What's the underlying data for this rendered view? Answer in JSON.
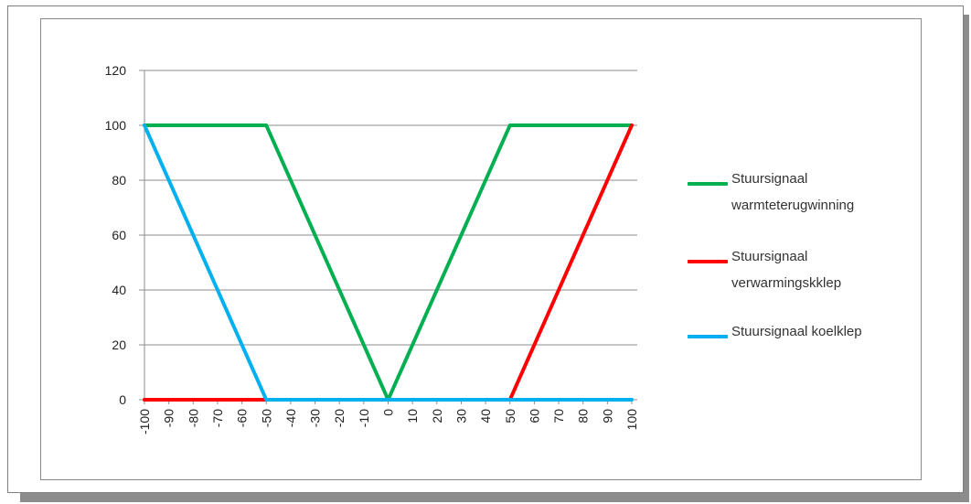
{
  "chart_data": {
    "type": "line",
    "title": "",
    "xlabel": "",
    "ylabel": "",
    "x": [
      -100,
      -90,
      -80,
      -70,
      -60,
      -50,
      -40,
      -30,
      -20,
      -10,
      0,
      10,
      20,
      30,
      40,
      50,
      60,
      70,
      80,
      90,
      100
    ],
    "x_tick_labels": [
      "-100",
      "-90",
      "-80",
      "-70",
      "-60",
      "-50",
      "-40",
      "-30",
      "-20",
      "-10",
      "0",
      "10",
      "20",
      "30",
      "40",
      "50",
      "60",
      "70",
      "80",
      "90",
      "100"
    ],
    "y_tick_labels": [
      "0",
      "20",
      "40",
      "60",
      "80",
      "100",
      "120"
    ],
    "xlim": [
      -100,
      100
    ],
    "ylim": [
      0,
      120
    ],
    "y_ticks": [
      0,
      20,
      40,
      60,
      80,
      100,
      120
    ],
    "grid": "horizontal",
    "legend_position": "right",
    "series": [
      {
        "name": "Stuursignaal warmteterugwinning",
        "legend_lines": [
          "Stuursignaal",
          "warmteterugwinning"
        ],
        "color": "#00b050",
        "values": [
          100,
          100,
          100,
          100,
          100,
          100,
          80,
          60,
          40,
          20,
          0,
          20,
          40,
          60,
          80,
          100,
          100,
          100,
          100,
          100,
          100
        ]
      },
      {
        "name": "Stuursignaal verwarmingskklep",
        "legend_lines": [
          "Stuursignaal",
          "verwarmingskklep"
        ],
        "color": "#ff0000",
        "values": [
          0,
          0,
          0,
          0,
          0,
          0,
          0,
          0,
          0,
          0,
          0,
          0,
          0,
          0,
          0,
          0,
          20,
          40,
          60,
          80,
          100
        ]
      },
      {
        "name": "Stuursignaal koelklep",
        "legend_lines": [
          "Stuursignaal koelklep"
        ],
        "color": "#00b0f0",
        "values": [
          100,
          80,
          60,
          40,
          20,
          0,
          0,
          0,
          0,
          0,
          0,
          0,
          0,
          0,
          0,
          0,
          0,
          0,
          0,
          0,
          0
        ]
      }
    ]
  }
}
